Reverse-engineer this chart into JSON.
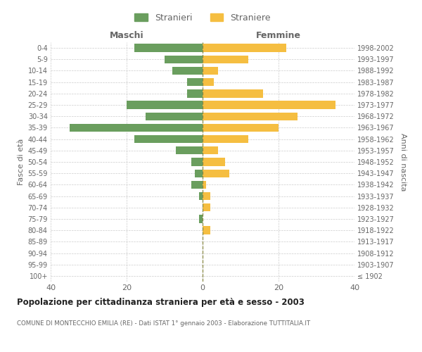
{
  "age_groups": [
    "100+",
    "95-99",
    "90-94",
    "85-89",
    "80-84",
    "75-79",
    "70-74",
    "65-69",
    "60-64",
    "55-59",
    "50-54",
    "45-49",
    "40-44",
    "35-39",
    "30-34",
    "25-29",
    "20-24",
    "15-19",
    "10-14",
    "5-9",
    "0-4"
  ],
  "birth_years": [
    "≤ 1902",
    "1903-1907",
    "1908-1912",
    "1913-1917",
    "1918-1922",
    "1923-1927",
    "1928-1932",
    "1933-1937",
    "1938-1942",
    "1943-1947",
    "1948-1952",
    "1953-1957",
    "1958-1962",
    "1963-1967",
    "1968-1972",
    "1973-1977",
    "1978-1982",
    "1983-1987",
    "1988-1992",
    "1993-1997",
    "1998-2002"
  ],
  "males": [
    0,
    0,
    0,
    0,
    0,
    1,
    0,
    1,
    3,
    2,
    3,
    7,
    18,
    35,
    15,
    20,
    4,
    4,
    8,
    10,
    18
  ],
  "females": [
    0,
    0,
    0,
    0,
    2,
    0,
    2,
    2,
    1,
    7,
    6,
    4,
    12,
    20,
    25,
    35,
    16,
    3,
    4,
    12,
    22
  ],
  "male_color": "#6a9e5e",
  "female_color": "#f5be41",
  "grid_color": "#cccccc",
  "text_color": "#666666",
  "title": "Popolazione per cittadinanza straniera per età e sesso - 2003",
  "subtitle": "COMUNE DI MONTECCHIO EMILIA (RE) - Dati ISTAT 1° gennaio 2003 - Elaborazione TUTTITALIA.IT",
  "xlabel_left": "Maschi",
  "xlabel_right": "Femmine",
  "ylabel_left": "Fasce di età",
  "ylabel_right": "Anni di nascita",
  "legend_male": "Stranieri",
  "legend_female": "Straniere",
  "xlim": 40,
  "bar_height": 0.7
}
